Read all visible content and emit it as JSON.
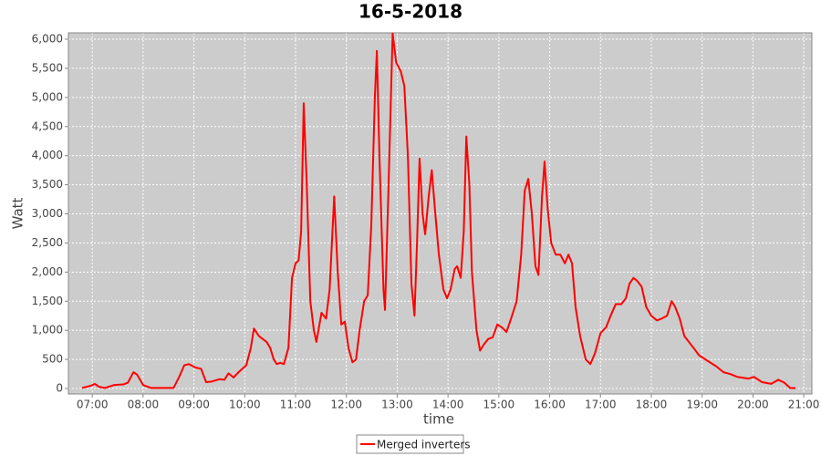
{
  "chart_data": {
    "type": "line",
    "title": "16-5-2018",
    "x_label": "time",
    "y_label": "Watt",
    "grid": true,
    "legend": "bottom",
    "xlim": [
      6.53,
      21.16
    ],
    "ylim": [
      -94,
      6110
    ],
    "xticks": [
      {
        "value": 7,
        "label": "07:00"
      },
      {
        "value": 8,
        "label": "08:00"
      },
      {
        "value": 9,
        "label": "09:00"
      },
      {
        "value": 10,
        "label": "10:00"
      },
      {
        "value": 11,
        "label": "11:00"
      },
      {
        "value": 12,
        "label": "12:00"
      },
      {
        "value": 13,
        "label": "13:00"
      },
      {
        "value": 14,
        "label": "14:00"
      },
      {
        "value": 15,
        "label": "15:00"
      },
      {
        "value": 16,
        "label": "16:00"
      },
      {
        "value": 17,
        "label": "17:00"
      },
      {
        "value": 18,
        "label": "18:00"
      },
      {
        "value": 19,
        "label": "19:00"
      },
      {
        "value": 20,
        "label": "20:00"
      },
      {
        "value": 21,
        "label": "21:00"
      }
    ],
    "yticks": [
      0,
      500,
      {
        "value": 1000,
        "label": "1,000"
      },
      {
        "value": 1500,
        "label": "1,500"
      },
      {
        "value": 2000,
        "label": "2,000"
      },
      {
        "value": 2500,
        "label": "2,500"
      },
      {
        "value": 3000,
        "label": "3,000"
      },
      {
        "value": 3500,
        "label": "3,500"
      },
      {
        "value": 4000,
        "label": "4,000"
      },
      {
        "value": 4500,
        "label": "4,500"
      },
      {
        "value": 5000,
        "label": "5,000"
      },
      {
        "value": 5500,
        "label": "5,500"
      },
      {
        "value": 6000,
        "label": "6,000"
      }
    ],
    "x": [
      6.8,
      6.98,
      7.05,
      7.13,
      7.25,
      7.43,
      7.61,
      7.7,
      7.81,
      7.88,
      8.0,
      8.15,
      8.42,
      8.6,
      8.71,
      8.81,
      8.9,
      9.03,
      9.14,
      9.24,
      9.35,
      9.5,
      9.6,
      9.68,
      9.78,
      9.89,
      10.03,
      10.12,
      10.18,
      10.28,
      10.43,
      10.5,
      10.57,
      10.63,
      10.7,
      10.77,
      10.86,
      10.93,
      11.0,
      11.06,
      11.11,
      11.16,
      11.22,
      11.29,
      11.36,
      11.41,
      11.51,
      11.6,
      11.67,
      11.76,
      11.83,
      11.9,
      11.97,
      12.04,
      12.12,
      12.19,
      12.26,
      12.35,
      12.42,
      12.49,
      12.56,
      12.6,
      12.65,
      12.73,
      12.76,
      12.83,
      12.91,
      12.98,
      13.07,
      13.14,
      13.21,
      13.28,
      13.34,
      13.39,
      13.44,
      13.5,
      13.55,
      13.62,
      13.68,
      13.75,
      13.82,
      13.91,
      13.98,
      14.05,
      14.13,
      14.18,
      14.25,
      14.31,
      14.36,
      14.42,
      14.47,
      14.56,
      14.63,
      14.7,
      14.79,
      14.88,
      14.97,
      15.06,
      15.15,
      15.24,
      15.35,
      15.44,
      15.51,
      15.58,
      15.65,
      15.72,
      15.78,
      15.85,
      15.9,
      15.96,
      16.03,
      16.12,
      16.21,
      16.3,
      16.37,
      16.44,
      16.51,
      16.6,
      16.71,
      16.8,
      16.89,
      17.0,
      17.11,
      17.2,
      17.3,
      17.41,
      17.5,
      17.57,
      17.65,
      17.72,
      17.81,
      17.9,
      18.0,
      18.11,
      18.2,
      18.31,
      18.4,
      18.47,
      18.56,
      18.65,
      18.74,
      18.83,
      18.94,
      19.1,
      19.28,
      19.42,
      19.55,
      19.69,
      19.91,
      20.02,
      20.18,
      20.36,
      20.5,
      20.62,
      20.73,
      20.84
    ],
    "series": [
      {
        "name": "Merged inverters",
        "color": "#ff0000",
        "values": [
          10,
          50,
          80,
          30,
          10,
          60,
          70,
          100,
          280,
          240,
          60,
          10,
          10,
          10,
          200,
          400,
          420,
          360,
          340,
          110,
          120,
          160,
          150,
          260,
          190,
          290,
          400,
          700,
          1030,
          900,
          800,
          700,
          500,
          420,
          440,
          420,
          700,
          1900,
          2150,
          2200,
          2700,
          4900,
          3500,
          1500,
          1000,
          800,
          1300,
          1200,
          1700,
          3300,
          2000,
          1100,
          1150,
          700,
          450,
          500,
          1000,
          1500,
          1600,
          2800,
          5000,
          5800,
          4000,
          1700,
          1350,
          3500,
          6100,
          5600,
          5450,
          5200,
          4000,
          1800,
          1250,
          2500,
          3950,
          3000,
          2650,
          3300,
          3750,
          3000,
          2300,
          1700,
          1550,
          1700,
          2050,
          2100,
          1900,
          2700,
          4330,
          3500,
          2000,
          1000,
          650,
          750,
          850,
          880,
          1100,
          1050,
          970,
          1200,
          1500,
          2300,
          3400,
          3600,
          3000,
          2100,
          1950,
          3300,
          3900,
          3100,
          2500,
          2300,
          2300,
          2150,
          2300,
          2150,
          1400,
          900,
          500,
          420,
          600,
          950,
          1050,
          1250,
          1450,
          1450,
          1550,
          1800,
          1900,
          1850,
          1750,
          1400,
          1250,
          1170,
          1200,
          1250,
          1500,
          1400,
          1200,
          900,
          800,
          700,
          570,
          480,
          380,
          280,
          250,
          200,
          170,
          200,
          110,
          80,
          150,
          100,
          10,
          5
        ]
      }
    ]
  }
}
